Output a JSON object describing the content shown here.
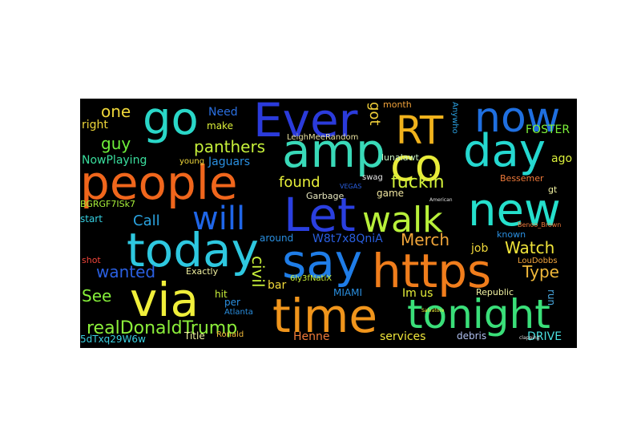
{
  "wordcloud": {
    "background": "#000000",
    "words": [
      {
        "text": "Ever",
        "color": "#2b3bdb"
      },
      {
        "text": "now",
        "color": "#1f6fe0"
      },
      {
        "text": "go",
        "color": "#2ad7c8"
      },
      {
        "text": "RT",
        "color": "#f0b21c"
      },
      {
        "text": "amp",
        "color": "#39d9b8"
      },
      {
        "text": "day",
        "color": "#25d8d0"
      },
      {
        "text": "co",
        "color": "#e8ec3a"
      },
      {
        "text": "people",
        "color": "#f0661c"
      },
      {
        "text": "new",
        "color": "#25e0cc"
      },
      {
        "text": "Let",
        "color": "#2a3fe0"
      },
      {
        "text": "walk",
        "color": "#b8f03a"
      },
      {
        "text": "will",
        "color": "#1f66e8"
      },
      {
        "text": "today",
        "color": "#2ec8e0"
      },
      {
        "text": "say",
        "color": "#1f7de8"
      },
      {
        "text": "https",
        "color": "#f07d1c"
      },
      {
        "text": "via",
        "color": "#f0ef3a"
      },
      {
        "text": "time",
        "color": "#f0951c"
      },
      {
        "text": "tonight",
        "color": "#3adf79"
      },
      {
        "text": "realDonaldTrump",
        "color": "#8cef3a"
      },
      {
        "text": "panthers",
        "color": "#c6f03a"
      },
      {
        "text": "fuckin",
        "color": "#d2f03a"
      },
      {
        "text": "one",
        "color": "#f0d83a"
      },
      {
        "text": "got",
        "color": "#f0cf3a"
      },
      {
        "text": "guy",
        "color": "#6ef03a"
      },
      {
        "text": "found",
        "color": "#e8f03a"
      },
      {
        "text": "Call",
        "color": "#2aa3e0"
      },
      {
        "text": "Merch",
        "color": "#f0a53a"
      },
      {
        "text": "Watch",
        "color": "#f0e43a"
      },
      {
        "text": "Type",
        "color": "#f0b83a"
      },
      {
        "text": "wanted",
        "color": "#2a5fe0"
      },
      {
        "text": "See",
        "color": "#86f03a"
      },
      {
        "text": "civil",
        "color": "#c8f03a"
      },
      {
        "text": "Im us",
        "color": "#e8f03a"
      },
      {
        "text": "NowPlaying",
        "color": "#3adf9e"
      },
      {
        "text": "Jaguars",
        "color": "#2a8fe0"
      },
      {
        "text": "LeighMeeRandom",
        "color": "#e8e0a0"
      },
      {
        "text": "W8t7x8QniA",
        "color": "#2a5fe0"
      },
      {
        "text": "Need",
        "color": "#2a6fe0"
      },
      {
        "text": "make",
        "color": "#ddf03a"
      },
      {
        "text": "right",
        "color": "#f0d83a"
      },
      {
        "text": "FOSTER",
        "color": "#7cf03a"
      },
      {
        "text": "ago",
        "color": "#dbf03a"
      },
      {
        "text": "Anywho",
        "color": "#2a9fe0"
      },
      {
        "text": "month",
        "color": "#f0a23a"
      },
      {
        "text": "game",
        "color": "#f0e6a0"
      },
      {
        "text": "swag",
        "color": "#e8e8e8"
      },
      {
        "text": "lunalawt",
        "color": "#c9f0c0"
      },
      {
        "text": "Garbage",
        "color": "#e8e8c0"
      },
      {
        "text": "around",
        "color": "#2a8fe0"
      },
      {
        "text": "start",
        "color": "#36cfe0"
      },
      {
        "text": "BGRGF7ISk7",
        "color": "#a8f03a"
      },
      {
        "text": "Bessemer",
        "color": "#f07a3a"
      },
      {
        "text": "gt",
        "color": "#f0f0a0"
      },
      {
        "text": "known",
        "color": "#2a8fe0"
      },
      {
        "text": "job",
        "color": "#f0d83a"
      },
      {
        "text": "LouDobbs",
        "color": "#f0a23a"
      },
      {
        "text": "bar",
        "color": "#f0d83a"
      },
      {
        "text": "6ly3fNatiX",
        "color": "#c9f03a"
      },
      {
        "text": "MIAMI",
        "color": "#2a8fe0"
      },
      {
        "text": "Republic",
        "color": "#f0f0a0"
      },
      {
        "text": "run",
        "color": "#4aa8e0"
      },
      {
        "text": "Exactly",
        "color": "#f0f0a0"
      },
      {
        "text": "hit",
        "color": "#c9f03a"
      },
      {
        "text": "per",
        "color": "#2a8fe0"
      },
      {
        "text": "Atlanta",
        "color": "#2a8fe0"
      },
      {
        "text": "shot",
        "color": "#f0453a"
      },
      {
        "text": "Henne",
        "color": "#f07a3a"
      },
      {
        "text": "services",
        "color": "#f0e63a"
      },
      {
        "text": "debris",
        "color": "#b0c0f0"
      },
      {
        "text": "DRIVE",
        "color": "#4ae0e0"
      },
      {
        "text": "Title",
        "color": "#f0f0a0"
      },
      {
        "text": "Ronald",
        "color": "#f0b83a"
      },
      {
        "text": "5dTxq29W6w",
        "color": "#3acfe0"
      },
      {
        "text": "young",
        "color": "#f0d83a"
      },
      {
        "text": "VEGAS",
        "color": "#2a5fe0"
      },
      {
        "text": "Benoo_Brown",
        "color": "#f07a3a"
      },
      {
        "text": "American",
        "color": "#e0e0e0"
      },
      {
        "text": "Salvatore",
        "color": "#f0f03a"
      },
      {
        "text": "clapping",
        "color": "#e0e0e0"
      }
    ]
  }
}
